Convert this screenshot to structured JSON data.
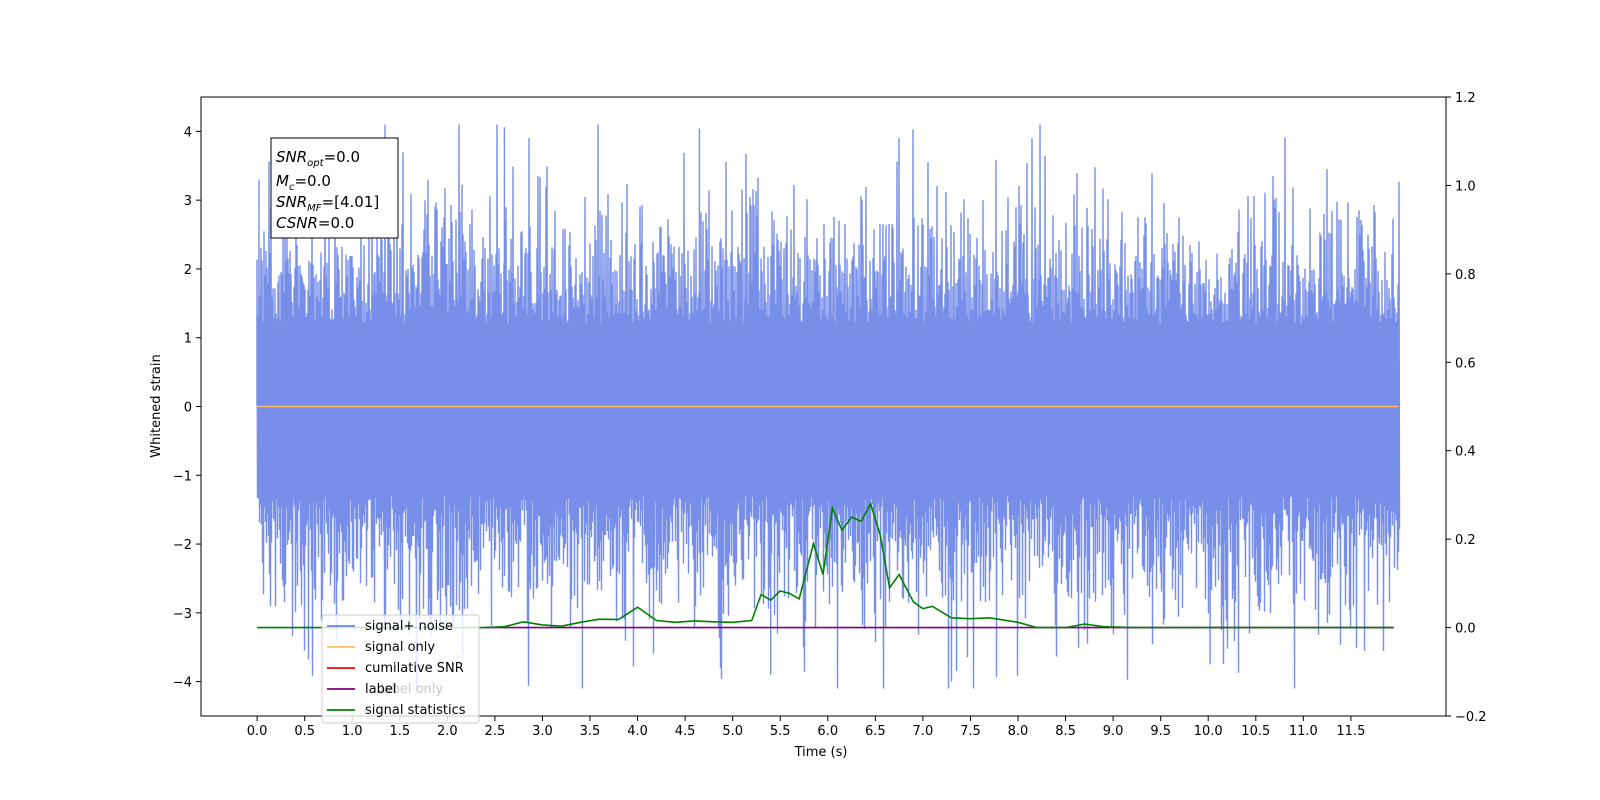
{
  "chart_data": {
    "type": "line",
    "xlabel": "Time (s)",
    "ylabel": "Whitened strain",
    "x_ticks": [
      "0.0",
      "0.5",
      "1.0",
      "1.5",
      "2.0",
      "2.5",
      "3.0",
      "3.5",
      "4.0",
      "4.5",
      "5.0",
      "5.5",
      "6.0",
      "6.5",
      "7.0",
      "7.5",
      "8.0",
      "8.5",
      "9.0",
      "9.5",
      "10.0",
      "10.5",
      "11.0",
      "11.5"
    ],
    "xlim": [
      -0.59,
      12.5
    ],
    "ylim_left": [
      -4.5,
      4.5
    ],
    "ylim_right": [
      -0.2,
      1.2
    ],
    "y_ticks_left": [
      "−4",
      "−3",
      "−2",
      "−1",
      "0",
      "1",
      "2",
      "3",
      "4"
    ],
    "y_ticks_right": [
      "−0.2",
      "0.0",
      "0.2",
      "0.4",
      "0.6",
      "0.8",
      "1.0",
      "1.2"
    ],
    "duration": 12.0,
    "series": [
      {
        "name": "signal+ noise",
        "color": "#6b86e6",
        "axis": "left",
        "description_of_shape": "dense noise, mostly between -2.5 and 2.5 with peaks near +4.1 and -4.1"
      },
      {
        "name": "signal only",
        "color": "#ffbf61",
        "axis": "left",
        "values_constant": 0.0
      },
      {
        "name": "cumilative SNR",
        "color": "#ff0000",
        "axis": "right"
      },
      {
        "name": "label",
        "color": "#800080",
        "axis": "right",
        "values_constant": 0.0
      },
      {
        "name": "label only",
        "color": "#808080",
        "axis": "right"
      },
      {
        "name": "signal statistics",
        "color": "#008000",
        "axis": "right",
        "x": [
          0.0,
          2.4,
          2.6,
          2.8,
          3.0,
          3.2,
          3.4,
          3.6,
          3.8,
          4.0,
          4.2,
          4.4,
          4.6,
          4.8,
          5.0,
          5.2,
          5.3,
          5.4,
          5.5,
          5.6,
          5.7,
          5.85,
          5.95,
          6.05,
          6.15,
          6.25,
          6.35,
          6.45,
          6.55,
          6.65,
          6.75,
          6.9,
          7.0,
          7.1,
          7.3,
          7.5,
          7.7,
          8.0,
          8.2,
          8.5,
          8.7,
          8.9,
          9.2,
          9.6,
          10.2,
          11.0,
          11.95
        ],
        "y": [
          0.0,
          0.0,
          0.002,
          0.013,
          0.006,
          0.003,
          0.012,
          0.019,
          0.018,
          0.046,
          0.016,
          0.012,
          0.015,
          0.013,
          0.012,
          0.016,
          0.075,
          0.062,
          0.083,
          0.077,
          0.065,
          0.19,
          0.12,
          0.27,
          0.22,
          0.25,
          0.24,
          0.28,
          0.21,
          0.09,
          0.12,
          0.058,
          0.043,
          0.048,
          0.022,
          0.02,
          0.022,
          0.012,
          0.0,
          0.0,
          0.008,
          0.002,
          0.0,
          0.0,
          0.0,
          0.0,
          0.0
        ]
      }
    ],
    "legend": {
      "placement": "lower-left"
    }
  },
  "info_box": {
    "snr_opt_main": "SNR",
    "snr_opt_sub": "opt",
    "snr_opt_value": "=0.0",
    "mc_main": "M",
    "mc_sub": "c",
    "mc_value": "=0.0",
    "snr_mf_main": "SNR",
    "snr_mf_sub": "MF",
    "snr_mf_value": "=[4.01]",
    "csnr_main": "CSNR",
    "csnr_value": "=0.0"
  },
  "legend_labels": [
    "signal+ noise",
    "signal only",
    "cumilative SNR",
    "label only",
    "label",
    "signal statistics"
  ]
}
